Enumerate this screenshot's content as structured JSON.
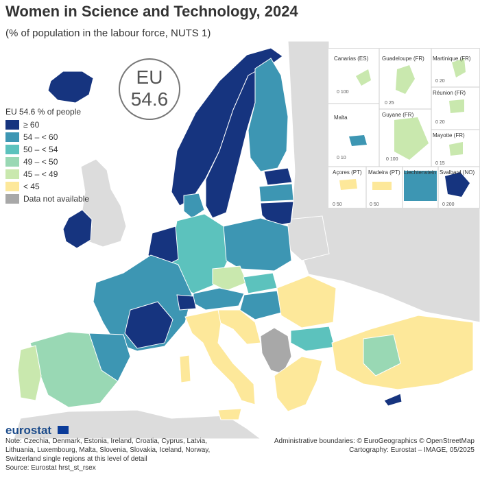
{
  "header": {
    "title": "Women in Science and Technology, 2024",
    "subtitle": "(% of population in the labour force, NUTS 1)"
  },
  "eu_badge": {
    "label": "EU",
    "value": "54.6"
  },
  "legend": {
    "title": "EU 54.6 % of people",
    "items": [
      {
        "label": "≥ 60",
        "color": "#16347f"
      },
      {
        "label": "54 – < 60",
        "color": "#3d96b3"
      },
      {
        "label": "50 – < 54",
        "color": "#5cc2bd"
      },
      {
        "label": "49 – < 50",
        "color": "#99d8b4"
      },
      {
        "label": "45 – < 49",
        "color": "#c9e8ae"
      },
      {
        "label": "< 45",
        "color": "#fde89a"
      },
      {
        "label": "Data not available",
        "color": "#a8a8a8"
      }
    ]
  },
  "colors": {
    "land_other": "#dcdcdc",
    "sea": "#ffffff"
  },
  "insets": [
    {
      "label": "Canarias (ES)",
      "scale": "0  100"
    },
    {
      "label": "Guadeloupe (FR)",
      "scale": "0  25"
    },
    {
      "label": "Martinique (FR)",
      "scale": "0  20"
    },
    {
      "label": "Guyane (FR)",
      "scale": "0  100"
    },
    {
      "label": "Réunion (FR)",
      "scale": "0  20"
    },
    {
      "label": "Malta",
      "scale": "0  10"
    },
    {
      "label": "Mayotte (FR)",
      "scale": "0  15"
    },
    {
      "label": "Açores (PT)",
      "scale": "0  50"
    },
    {
      "label": "Madeira (PT)",
      "scale": "0  50"
    },
    {
      "label": "Liechtenstein",
      "scale": "0  5"
    },
    {
      "label": "Svalbard (NO)",
      "scale": "0  200"
    }
  ],
  "footer": {
    "logo": "eurostat",
    "note_lines": [
      "Note: Czechia, Denmark, Estonia, Ireland, Croatia, Cyprus, Latvia,",
      "Lithuania, Luxembourg, Malta, Slovenia, Slovakia, Iceland, Norway,",
      "Switzerland single regions at this level of detail",
      "Source: Eurostat hrst_st_rsex"
    ],
    "credits": [
      "Administrative boundaries: © EuroGeographics © OpenStreetMap",
      "Cartography: Eurostat – IMAGE, 05/2025"
    ]
  }
}
